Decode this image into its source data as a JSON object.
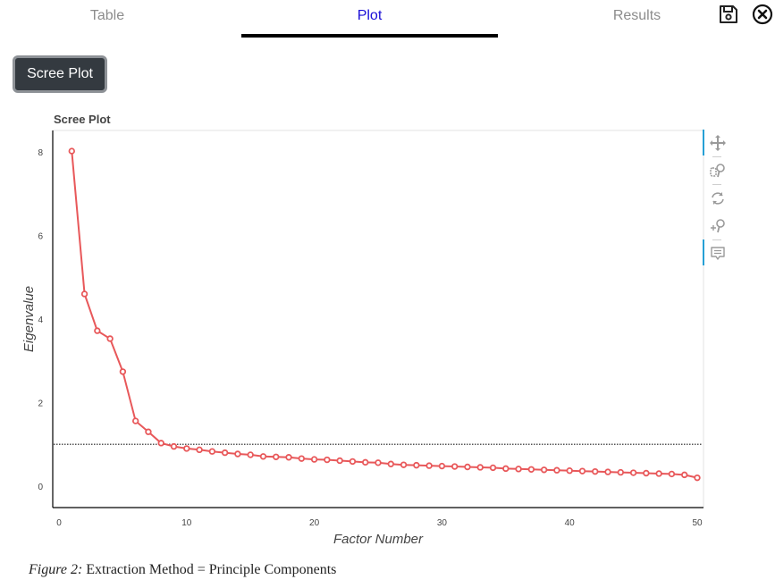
{
  "tabs": [
    {
      "label": "Table",
      "active": false
    },
    {
      "label": "Plot",
      "active": true
    },
    {
      "label": "Results",
      "active": false
    }
  ],
  "header_icons": {
    "save": "save-icon",
    "close": "close-circle-icon"
  },
  "buttons": {
    "scree_plot": "Scree Plot"
  },
  "plot_toolbar": [
    "pan-icon",
    "box-zoom-icon",
    "reset-icon",
    "wheel-zoom-icon",
    "hover-tooltip-icon"
  ],
  "caption": {
    "label": "Figure 2:",
    "text": " Extraction Method = Principle Components"
  },
  "chart_data": {
    "type": "line",
    "title": "Scree Plot",
    "xlabel": "Factor Number",
    "ylabel": "Eigenvalue",
    "xlim": [
      0,
      50
    ],
    "ylim": [
      -0.5,
      8.5
    ],
    "x_ticks": [
      "0",
      "10",
      "20",
      "30",
      "40",
      "50"
    ],
    "y_ticks": [
      "0",
      "2",
      "4",
      "6",
      "8"
    ],
    "grid": false,
    "legend": null,
    "reference_line": {
      "y": 1.0,
      "style": "dotted",
      "color": "#555555"
    },
    "series": [
      {
        "name": "Eigenvalue",
        "color": "#e8585a",
        "marker": "open-circle",
        "x": [
          1,
          2,
          3,
          4,
          5,
          6,
          7,
          8,
          9,
          10,
          11,
          12,
          13,
          14,
          15,
          16,
          17,
          18,
          19,
          20,
          21,
          22,
          23,
          24,
          25,
          26,
          27,
          28,
          29,
          30,
          31,
          32,
          33,
          34,
          35,
          36,
          37,
          38,
          39,
          40,
          41,
          42,
          43,
          44,
          45,
          46,
          47,
          48,
          49,
          50
        ],
        "values": [
          8.02,
          4.6,
          3.72,
          3.53,
          2.74,
          1.56,
          1.3,
          1.03,
          0.95,
          0.9,
          0.87,
          0.83,
          0.8,
          0.77,
          0.75,
          0.71,
          0.7,
          0.69,
          0.66,
          0.64,
          0.63,
          0.61,
          0.59,
          0.57,
          0.56,
          0.53,
          0.51,
          0.5,
          0.49,
          0.48,
          0.47,
          0.46,
          0.45,
          0.44,
          0.42,
          0.41,
          0.4,
          0.39,
          0.38,
          0.37,
          0.36,
          0.35,
          0.34,
          0.33,
          0.32,
          0.31,
          0.3,
          0.29,
          0.27,
          0.2
        ]
      }
    ]
  }
}
